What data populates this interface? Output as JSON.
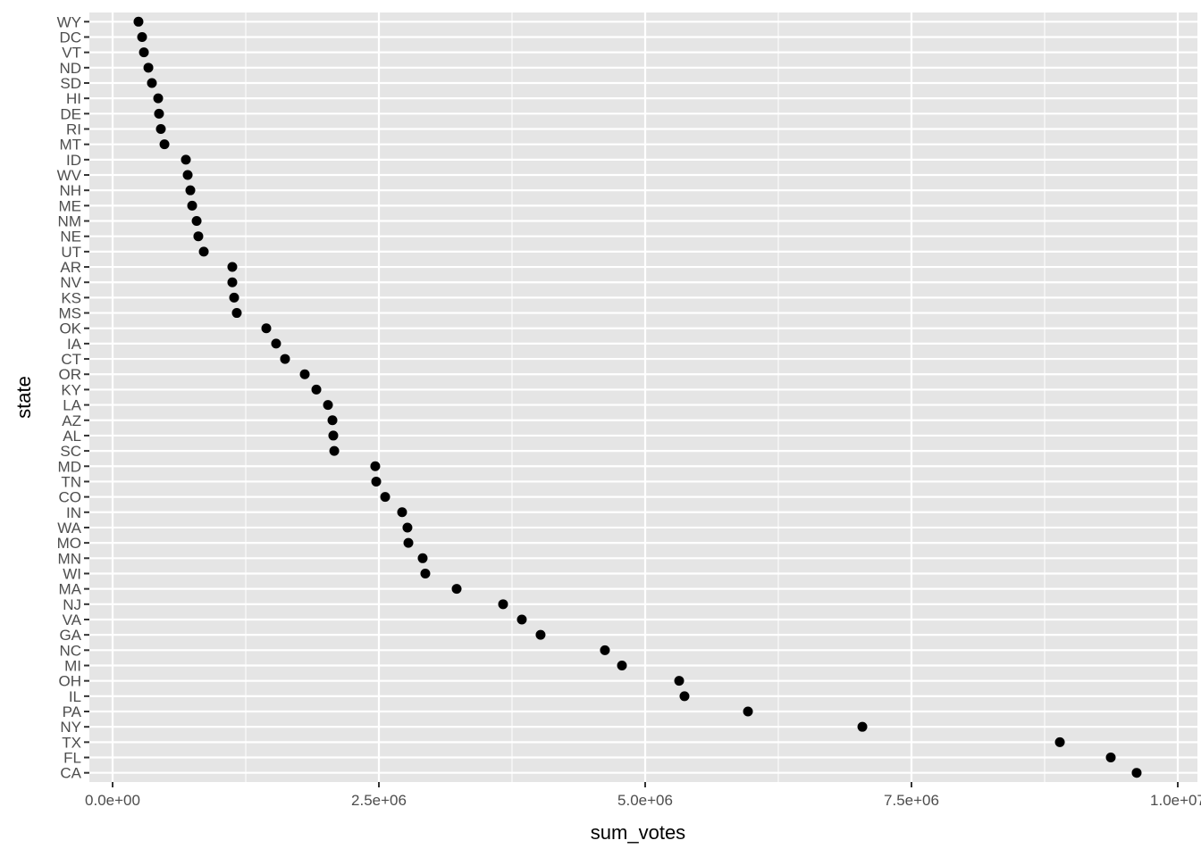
{
  "chart_data": {
    "type": "scatter",
    "title": "",
    "xlabel": "sum_votes",
    "ylabel": "state",
    "xlim": [
      0,
      10000000
    ],
    "x_ticks": [
      0,
      2500000,
      5000000,
      7500000,
      10000000
    ],
    "x_tick_labels": [
      "0.0e+00",
      "2.5e+06",
      "5.0e+06",
      "7.5e+06",
      "1.0e+07"
    ],
    "grid": true,
    "panel_background": "#e5e5e5",
    "point_color": "#000000",
    "categories": [
      "WY",
      "DC",
      "VT",
      "ND",
      "SD",
      "HI",
      "DE",
      "RI",
      "MT",
      "ID",
      "WV",
      "NH",
      "ME",
      "NM",
      "NE",
      "UT",
      "AR",
      "NV",
      "KS",
      "MS",
      "OK",
      "IA",
      "CT",
      "OR",
      "KY",
      "LA",
      "AZ",
      "AL",
      "SC",
      "MD",
      "TN",
      "CO",
      "IN",
      "WA",
      "MO",
      "MN",
      "WI",
      "MA",
      "NJ",
      "VA",
      "GA",
      "NC",
      "MI",
      "OH",
      "IL",
      "PA",
      "NY",
      "TX",
      "FL",
      "CA"
    ],
    "values": [
      243000,
      277000,
      294000,
      336000,
      369000,
      428000,
      436000,
      453000,
      487000,
      688000,
      705000,
      730000,
      747000,
      789000,
      805000,
      856000,
      1124000,
      1124000,
      1141000,
      1166000,
      1443000,
      1535000,
      1619000,
      1804000,
      1913000,
      2022000,
      2064000,
      2072000,
      2081000,
      2466000,
      2475000,
      2559000,
      2718000,
      2768000,
      2777000,
      2911000,
      2936000,
      3230000,
      3666000,
      3842000,
      4018000,
      4622000,
      4782000,
      5319000,
      5369000,
      5965000,
      7039000,
      8893000,
      9371000,
      9614000
    ]
  }
}
